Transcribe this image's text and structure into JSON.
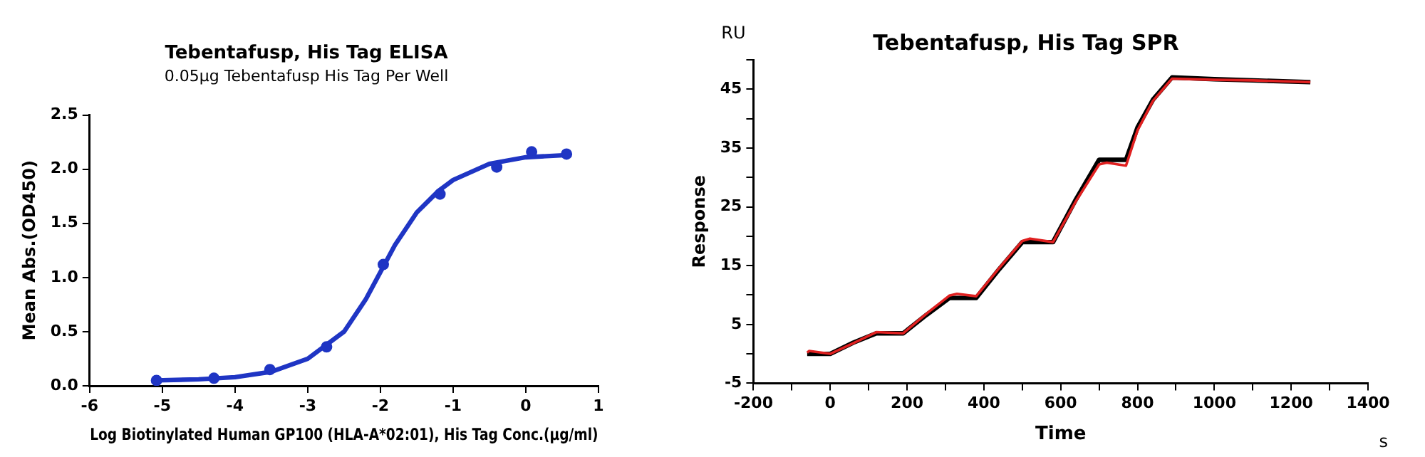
{
  "chart_data": [
    {
      "type": "scatter",
      "title": "Tebentafusp, His Tag ELISA",
      "subtitle": "0.05μg Tebentafusp His Tag Per Well",
      "xlabel": "Log Biotinylated Human GP100 (HLA-A*02:01), His Tag Conc.(μg/ml)",
      "ylabel": "Mean Abs.(OD450)",
      "xlim": [
        -6,
        1
      ],
      "ylim": [
        0,
        2.5
      ],
      "xticks": [
        -6,
        -5,
        -4,
        -3,
        -2,
        -1,
        0,
        1
      ],
      "yticks": [
        {
          "value": 0,
          "label": "0.0"
        },
        {
          "value": 0.5,
          "label": "0.5"
        },
        {
          "value": 1,
          "label": "1.0"
        },
        {
          "value": 1.5,
          "label": "1.5"
        },
        {
          "value": 2,
          "label": "2.0"
        },
        {
          "value": 2.5,
          "label": "2.5"
        }
      ],
      "grid": false,
      "legend": false,
      "series": [
        {
          "color": "#1f35c4",
          "marker": "circle",
          "x": [
            -5.08,
            -4.29,
            -3.52,
            -2.74,
            -1.96,
            -1.18,
            -0.4,
            0.08,
            0.56
          ],
          "values": [
            0.05,
            0.07,
            0.15,
            0.36,
            1.12,
            1.77,
            2.02,
            2.16,
            2.14
          ]
        },
        {
          "type": "line",
          "color": "#1f35c4",
          "marker": "none",
          "x": [
            -5.08,
            -4.5,
            -4,
            -3.5,
            -3,
            -2.5,
            -2.2,
            -2,
            -1.8,
            -1.5,
            -1.2,
            -1,
            -0.5,
            0,
            0.56
          ],
          "values": [
            0.05,
            0.06,
            0.08,
            0.13,
            0.25,
            0.5,
            0.8,
            1.05,
            1.3,
            1.6,
            1.8,
            1.9,
            2.05,
            2.11,
            2.13
          ]
        }
      ]
    },
    {
      "type": "line",
      "title": "Tebentafusp, His Tag SPR",
      "xlabel": "Time",
      "ylabel": "Response",
      "annotations": [
        "RU",
        "s"
      ],
      "xlim": [
        -200,
        1400
      ],
      "ylim": [
        -5,
        50
      ],
      "xticks": [
        -200,
        {
          "value": -100,
          "label": null
        },
        0,
        {
          "value": 100,
          "label": null
        },
        200,
        {
          "value": 300,
          "label": null
        },
        400,
        {
          "value": 500,
          "label": null
        },
        600,
        {
          "value": 700,
          "label": null
        },
        800,
        {
          "value": 900,
          "label": null
        },
        1000,
        {
          "value": 1100,
          "label": null
        },
        1200,
        {
          "value": 1300,
          "label": null
        },
        1400
      ],
      "yticks": [
        -5,
        {
          "value": 0,
          "label": null
        },
        5,
        {
          "value": 10,
          "label": null
        },
        15,
        {
          "value": 20,
          "label": null
        },
        25,
        {
          "value": 30,
          "label": null
        },
        35,
        {
          "value": 40,
          "label": null
        },
        45,
        {
          "value": 50,
          "label": null
        }
      ],
      "grid": false,
      "legend": false,
      "series": [
        {
          "color": "#e02020",
          "marker": "none",
          "x": [
            -60,
            -55,
            0,
            60,
            120,
            190,
            250,
            310,
            330,
            380,
            440,
            500,
            520,
            580,
            640,
            700,
            720,
            770,
            800,
            840,
            890,
            1000,
            1100,
            1250
          ],
          "values": [
            0.2,
            0.5,
            0,
            1.8,
            3.7,
            3.5,
            6.8,
            9.9,
            10.2,
            9.8,
            14.6,
            19.2,
            19.6,
            19,
            26,
            32.2,
            32.5,
            32,
            38,
            43,
            46.8,
            46.6,
            46.5,
            46.2
          ]
        },
        {
          "color": "#000000",
          "marker": "none",
          "x": [
            -60,
            0,
            60,
            120,
            190,
            250,
            310,
            380,
            440,
            500,
            580,
            640,
            700,
            770,
            800,
            840,
            890,
            1000,
            1100,
            1250
          ],
          "values": [
            0,
            0,
            1.9,
            3.5,
            3.5,
            6.6,
            9.5,
            9.5,
            14.4,
            19,
            19,
            26.3,
            33,
            33,
            38.5,
            43.2,
            47,
            46.7,
            46.5,
            46.2
          ]
        }
      ]
    }
  ]
}
